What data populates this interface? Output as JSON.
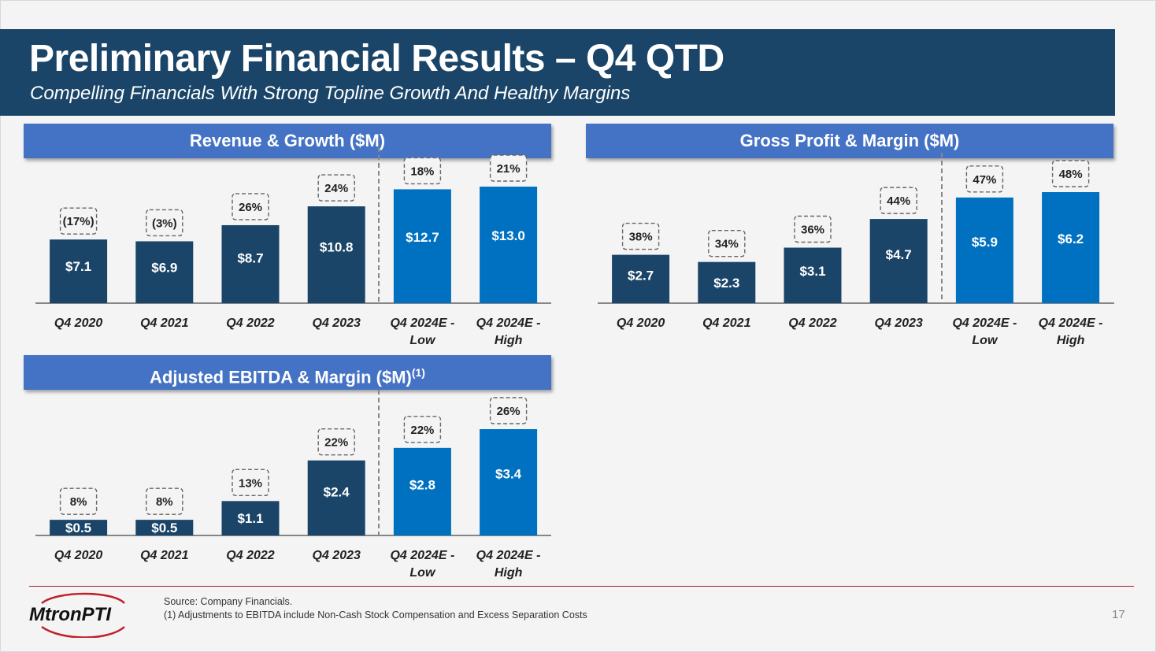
{
  "header": {
    "title": "Preliminary Financial Results – Q4 QTD",
    "subtitle": "Compelling Financials With Strong Topline Growth And Healthy Margins"
  },
  "panels": {
    "revenue_title": "Revenue & Growth ($M)",
    "gross_title": "Gross Profit & Margin ($M)",
    "ebitda_title": "Adjusted EBITDA & Margin ($M)",
    "ebitda_title_sup": "(1)"
  },
  "colors": {
    "actual": "#1a4568",
    "estimate": "#0070c0",
    "header_bg": "#1a4568",
    "panel_bg": "#4472c4"
  },
  "chart_data": [
    {
      "id": "revenue",
      "type": "bar",
      "title": "Revenue & Growth ($M)",
      "categories": [
        [
          "Q4 2020"
        ],
        [
          "Q4 2021"
        ],
        [
          "Q4 2022"
        ],
        [
          "Q4 2023"
        ],
        [
          "Q4 2024E -",
          "Low"
        ],
        [
          "Q4 2024E -",
          "High"
        ]
      ],
      "values": [
        7.1,
        6.9,
        8.7,
        10.8,
        12.7,
        13.0
      ],
      "value_labels": [
        "$7.1",
        "$6.9",
        "$8.7",
        "$10.8",
        "$12.7",
        "$13.0"
      ],
      "annotations": [
        "(17%)",
        "(3%)",
        "26%",
        "24%",
        "18%",
        "21%"
      ],
      "estimate_from_index": 4,
      "ylim": [
        0,
        13.0
      ]
    },
    {
      "id": "gross",
      "type": "bar",
      "title": "Gross Profit & Margin ($M)",
      "categories": [
        [
          "Q4 2020"
        ],
        [
          "Q4 2021"
        ],
        [
          "Q4 2022"
        ],
        [
          "Q4 2023"
        ],
        [
          "Q4 2024E -",
          "Low"
        ],
        [
          "Q4 2024E -",
          "High"
        ]
      ],
      "values": [
        2.7,
        2.3,
        3.1,
        4.7,
        5.9,
        6.2
      ],
      "value_labels": [
        "$2.7",
        "$2.3",
        "$3.1",
        "$4.7",
        "$5.9",
        "$6.2"
      ],
      "annotations": [
        "38%",
        "34%",
        "36%",
        "44%",
        "47%",
        "48%"
      ],
      "estimate_from_index": 4,
      "ylim": [
        0,
        6.2
      ]
    },
    {
      "id": "ebitda",
      "type": "bar",
      "title": "Adjusted EBITDA & Margin ($M)",
      "categories": [
        [
          "Q4 2020"
        ],
        [
          "Q4 2021"
        ],
        [
          "Q4 2022"
        ],
        [
          "Q4 2023"
        ],
        [
          "Q4 2024E -",
          "Low"
        ],
        [
          "Q4 2024E -",
          "High"
        ]
      ],
      "values": [
        0.5,
        0.5,
        1.1,
        2.4,
        2.8,
        3.4
      ],
      "value_labels": [
        "$0.5",
        "$0.5",
        "$1.1",
        "$2.4",
        "$2.8",
        "$3.4"
      ],
      "annotations": [
        "8%",
        "8%",
        "13%",
        "22%",
        "22%",
        "26%"
      ],
      "estimate_from_index": 4,
      "ylim": [
        0,
        3.4
      ]
    }
  ],
  "footer": {
    "source": "Source: Company Financials.",
    "note": "(1) Adjustments to EBITDA include Non-Cash Stock Compensation and Excess Separation Costs",
    "page_number": "17",
    "logo_text": "MtronPTI"
  }
}
